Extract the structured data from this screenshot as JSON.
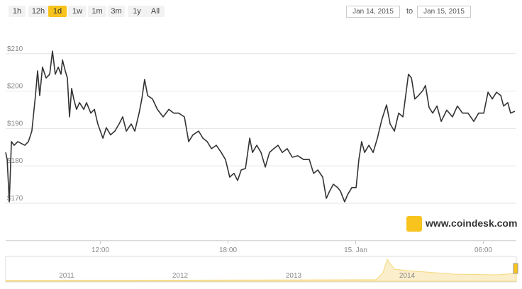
{
  "range_selector": {
    "buttons": [
      "1h",
      "12h",
      "1d",
      "1w",
      "1m",
      "3m",
      "1y",
      "All"
    ],
    "selected": 2
  },
  "date_range": {
    "from": "Jan 14, 2015",
    "separator": "to",
    "to": "Jan 15, 2015"
  },
  "watermark": "www.coindesk.com",
  "navigator": {
    "labels": [
      "2011",
      "2012",
      "2013",
      "2014"
    ]
  },
  "chart_data": {
    "type": "line",
    "color": "#333333",
    "grid": true,
    "x": [
      7.55,
      7.62,
      7.72,
      7.82,
      7.95,
      8.12,
      8.45,
      8.62,
      8.78,
      8.95,
      9.05,
      9.15,
      9.28,
      9.45,
      9.62,
      9.75,
      9.88,
      10.02,
      10.15,
      10.22,
      10.35,
      10.45,
      10.55,
      10.65,
      10.75,
      10.88,
      11.02,
      11.22,
      11.35,
      11.55,
      11.72,
      11.88,
      12.12,
      12.28,
      12.48,
      12.68,
      12.88,
      13.05,
      13.22,
      13.45,
      13.62,
      13.82,
      13.95,
      14.08,
      14.22,
      14.45,
      14.68,
      14.95,
      15.22,
      15.45,
      15.68,
      15.95,
      16.15,
      16.35,
      16.62,
      16.82,
      17.02,
      17.22,
      17.45,
      17.68,
      17.88,
      18.08,
      18.28,
      18.45,
      18.62,
      18.82,
      19.02,
      19.15,
      19.35,
      19.55,
      19.75,
      19.95,
      20.15,
      20.35,
      20.55,
      20.78,
      21.02,
      21.28,
      21.55,
      21.82,
      22.02,
      22.22,
      22.45,
      22.62,
      22.78,
      22.95,
      23.15,
      23.28,
      23.48,
      23.62,
      23.82,
      24.02,
      24.15,
      24.28,
      24.42,
      24.62,
      24.82,
      25.02,
      25.22,
      25.45,
      25.62,
      25.82,
      26.02,
      26.22,
      26.35,
      26.48,
      26.62,
      26.78,
      26.95,
      27.15,
      27.28,
      27.45,
      27.62,
      27.82,
      28.02,
      28.28,
      28.55,
      28.78,
      29.02,
      29.28,
      29.55,
      29.78,
      30.02,
      30.22,
      30.42,
      30.62,
      30.82,
      30.95,
      31.15,
      31.28,
      31.48
    ],
    "values": [
      183.6,
      181.7,
      170.4,
      186.5,
      185.5,
      186.5,
      185.5,
      186.5,
      189.3,
      198.8,
      205.4,
      198.8,
      206.4,
      203.5,
      204.5,
      210.7,
      204.5,
      206.4,
      204.5,
      208.3,
      205.4,
      203.5,
      193.1,
      200.7,
      197.9,
      195.1,
      196.9,
      195.1,
      196.9,
      194.1,
      195.1,
      191.2,
      187.4,
      190.2,
      188.3,
      189.3,
      191.2,
      193.1,
      189.3,
      191.2,
      189.3,
      194.1,
      197.9,
      203.1,
      198.8,
      197.9,
      195.1,
      193.1,
      195.1,
      194.1,
      194.1,
      193.1,
      186.5,
      188.3,
      189.3,
      187.4,
      186.5,
      184.6,
      185.5,
      183.6,
      181.7,
      177.0,
      178.0,
      176.1,
      178.9,
      179.3,
      187.4,
      183.6,
      185.5,
      183.6,
      179.7,
      183.6,
      184.6,
      185.5,
      183.6,
      184.6,
      182.3,
      182.7,
      181.7,
      181.7,
      178.0,
      178.9,
      177.0,
      171.3,
      173.3,
      175.1,
      174.2,
      173.3,
      170.4,
      172.3,
      174.2,
      174.2,
      181.7,
      186.5,
      183.6,
      185.5,
      183.6,
      187.4,
      192.2,
      196.3,
      191.2,
      189.3,
      194.1,
      193.1,
      198.8,
      204.5,
      203.5,
      197.9,
      198.8,
      200.1,
      201.5,
      195.6,
      194.1,
      196.0,
      191.9,
      194.9,
      193.1,
      196.0,
      194.1,
      194.1,
      191.9,
      194.1,
      194.1,
      199.7,
      197.9,
      199.7,
      198.8,
      196.0,
      196.9,
      194.1,
      194.6
    ],
    "xlim": [
      7.55,
      31.55
    ],
    "xticks": [
      {
        "value": 12,
        "label": "12:00"
      },
      {
        "value": 18,
        "label": "18:00"
      },
      {
        "value": 24,
        "label": "15. Jan"
      },
      {
        "value": 30,
        "label": "06:00"
      }
    ],
    "ylim": [
      160,
      222
    ],
    "yticks": [
      {
        "value": 170,
        "label": "$170"
      },
      {
        "value": 180,
        "label": "$180"
      },
      {
        "value": 190,
        "label": "$190"
      },
      {
        "value": 200,
        "label": "$200"
      },
      {
        "value": 210,
        "label": "$210"
      }
    ]
  }
}
